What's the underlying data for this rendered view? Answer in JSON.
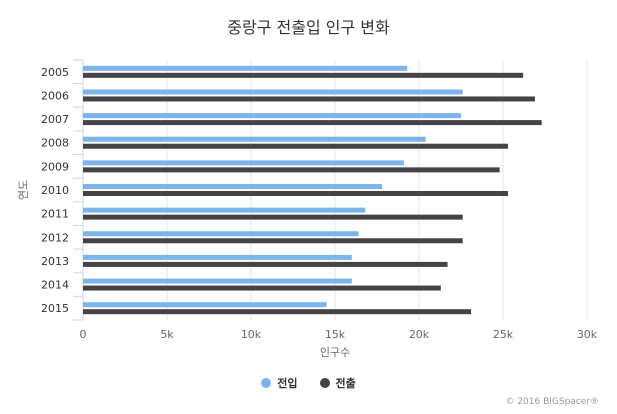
{
  "chart_data": {
    "type": "bar",
    "orientation": "horizontal",
    "title": "중랑구 전출입 인구 변화",
    "xlabel": "인구수",
    "ylabel": "연도",
    "categories": [
      "2005",
      "2006",
      "2007",
      "2008",
      "2009",
      "2010",
      "2011",
      "2012",
      "2013",
      "2014",
      "2015"
    ],
    "xlim": [
      0,
      30000
    ],
    "x_ticks": [
      0,
      5000,
      10000,
      15000,
      20000,
      25000,
      30000
    ],
    "x_tick_labels": [
      "0",
      "5k",
      "10k",
      "15k",
      "20k",
      "25k",
      "30k"
    ],
    "grid": true,
    "legend_position": "bottom-center",
    "series": [
      {
        "name": "전입",
        "color": "#7cb5ec",
        "values": [
          19300,
          22600,
          22500,
          20400,
          19100,
          17800,
          16800,
          16400,
          16000,
          16000,
          14500
        ]
      },
      {
        "name": "전출",
        "color": "#434348",
        "values": [
          26200,
          26900,
          27300,
          25300,
          24800,
          25300,
          22600,
          22600,
          21700,
          21300,
          23100
        ]
      }
    ]
  },
  "credits": "© 2016 BIGSpacer®"
}
